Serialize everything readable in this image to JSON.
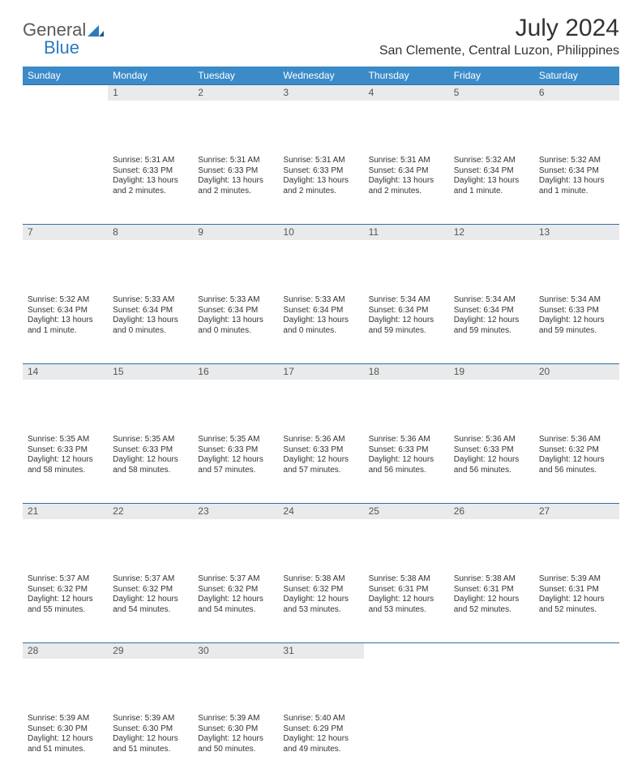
{
  "brand": {
    "part1": "General",
    "part2": "Blue"
  },
  "title": "July 2024",
  "location": "San Clemente, Central Luzon, Philippines",
  "colors": {
    "header_bg": "#3b8bc9",
    "header_text": "#ffffff",
    "daynum_bg": "#e9eaeb",
    "daynum_border": "#2f6fa6",
    "body_text": "#333333",
    "brand_gray": "#5a5a5a",
    "brand_blue": "#2b7bbf",
    "page_bg": "#ffffff"
  },
  "typography": {
    "title_fontsize": 30,
    "location_fontsize": 16,
    "dayheader_fontsize": 12,
    "daynum_fontsize": 12,
    "cell_fontsize": 10
  },
  "day_headers": [
    "Sunday",
    "Monday",
    "Tuesday",
    "Wednesday",
    "Thursday",
    "Friday",
    "Saturday"
  ],
  "weeks": [
    [
      {
        "num": "",
        "sunrise": "",
        "sunset": "",
        "daylight": ""
      },
      {
        "num": "1",
        "sunrise": "Sunrise: 5:31 AM",
        "sunset": "Sunset: 6:33 PM",
        "daylight": "Daylight: 13 hours and 2 minutes."
      },
      {
        "num": "2",
        "sunrise": "Sunrise: 5:31 AM",
        "sunset": "Sunset: 6:33 PM",
        "daylight": "Daylight: 13 hours and 2 minutes."
      },
      {
        "num": "3",
        "sunrise": "Sunrise: 5:31 AM",
        "sunset": "Sunset: 6:33 PM",
        "daylight": "Daylight: 13 hours and 2 minutes."
      },
      {
        "num": "4",
        "sunrise": "Sunrise: 5:31 AM",
        "sunset": "Sunset: 6:34 PM",
        "daylight": "Daylight: 13 hours and 2 minutes."
      },
      {
        "num": "5",
        "sunrise": "Sunrise: 5:32 AM",
        "sunset": "Sunset: 6:34 PM",
        "daylight": "Daylight: 13 hours and 1 minute."
      },
      {
        "num": "6",
        "sunrise": "Sunrise: 5:32 AM",
        "sunset": "Sunset: 6:34 PM",
        "daylight": "Daylight: 13 hours and 1 minute."
      }
    ],
    [
      {
        "num": "7",
        "sunrise": "Sunrise: 5:32 AM",
        "sunset": "Sunset: 6:34 PM",
        "daylight": "Daylight: 13 hours and 1 minute."
      },
      {
        "num": "8",
        "sunrise": "Sunrise: 5:33 AM",
        "sunset": "Sunset: 6:34 PM",
        "daylight": "Daylight: 13 hours and 0 minutes."
      },
      {
        "num": "9",
        "sunrise": "Sunrise: 5:33 AM",
        "sunset": "Sunset: 6:34 PM",
        "daylight": "Daylight: 13 hours and 0 minutes."
      },
      {
        "num": "10",
        "sunrise": "Sunrise: 5:33 AM",
        "sunset": "Sunset: 6:34 PM",
        "daylight": "Daylight: 13 hours and 0 minutes."
      },
      {
        "num": "11",
        "sunrise": "Sunrise: 5:34 AM",
        "sunset": "Sunset: 6:34 PM",
        "daylight": "Daylight: 12 hours and 59 minutes."
      },
      {
        "num": "12",
        "sunrise": "Sunrise: 5:34 AM",
        "sunset": "Sunset: 6:34 PM",
        "daylight": "Daylight: 12 hours and 59 minutes."
      },
      {
        "num": "13",
        "sunrise": "Sunrise: 5:34 AM",
        "sunset": "Sunset: 6:33 PM",
        "daylight": "Daylight: 12 hours and 59 minutes."
      }
    ],
    [
      {
        "num": "14",
        "sunrise": "Sunrise: 5:35 AM",
        "sunset": "Sunset: 6:33 PM",
        "daylight": "Daylight: 12 hours and 58 minutes."
      },
      {
        "num": "15",
        "sunrise": "Sunrise: 5:35 AM",
        "sunset": "Sunset: 6:33 PM",
        "daylight": "Daylight: 12 hours and 58 minutes."
      },
      {
        "num": "16",
        "sunrise": "Sunrise: 5:35 AM",
        "sunset": "Sunset: 6:33 PM",
        "daylight": "Daylight: 12 hours and 57 minutes."
      },
      {
        "num": "17",
        "sunrise": "Sunrise: 5:36 AM",
        "sunset": "Sunset: 6:33 PM",
        "daylight": "Daylight: 12 hours and 57 minutes."
      },
      {
        "num": "18",
        "sunrise": "Sunrise: 5:36 AM",
        "sunset": "Sunset: 6:33 PM",
        "daylight": "Daylight: 12 hours and 56 minutes."
      },
      {
        "num": "19",
        "sunrise": "Sunrise: 5:36 AM",
        "sunset": "Sunset: 6:33 PM",
        "daylight": "Daylight: 12 hours and 56 minutes."
      },
      {
        "num": "20",
        "sunrise": "Sunrise: 5:36 AM",
        "sunset": "Sunset: 6:32 PM",
        "daylight": "Daylight: 12 hours and 56 minutes."
      }
    ],
    [
      {
        "num": "21",
        "sunrise": "Sunrise: 5:37 AM",
        "sunset": "Sunset: 6:32 PM",
        "daylight": "Daylight: 12 hours and 55 minutes."
      },
      {
        "num": "22",
        "sunrise": "Sunrise: 5:37 AM",
        "sunset": "Sunset: 6:32 PM",
        "daylight": "Daylight: 12 hours and 54 minutes."
      },
      {
        "num": "23",
        "sunrise": "Sunrise: 5:37 AM",
        "sunset": "Sunset: 6:32 PM",
        "daylight": "Daylight: 12 hours and 54 minutes."
      },
      {
        "num": "24",
        "sunrise": "Sunrise: 5:38 AM",
        "sunset": "Sunset: 6:32 PM",
        "daylight": "Daylight: 12 hours and 53 minutes."
      },
      {
        "num": "25",
        "sunrise": "Sunrise: 5:38 AM",
        "sunset": "Sunset: 6:31 PM",
        "daylight": "Daylight: 12 hours and 53 minutes."
      },
      {
        "num": "26",
        "sunrise": "Sunrise: 5:38 AM",
        "sunset": "Sunset: 6:31 PM",
        "daylight": "Daylight: 12 hours and 52 minutes."
      },
      {
        "num": "27",
        "sunrise": "Sunrise: 5:39 AM",
        "sunset": "Sunset: 6:31 PM",
        "daylight": "Daylight: 12 hours and 52 minutes."
      }
    ],
    [
      {
        "num": "28",
        "sunrise": "Sunrise: 5:39 AM",
        "sunset": "Sunset: 6:30 PM",
        "daylight": "Daylight: 12 hours and 51 minutes."
      },
      {
        "num": "29",
        "sunrise": "Sunrise: 5:39 AM",
        "sunset": "Sunset: 6:30 PM",
        "daylight": "Daylight: 12 hours and 51 minutes."
      },
      {
        "num": "30",
        "sunrise": "Sunrise: 5:39 AM",
        "sunset": "Sunset: 6:30 PM",
        "daylight": "Daylight: 12 hours and 50 minutes."
      },
      {
        "num": "31",
        "sunrise": "Sunrise: 5:40 AM",
        "sunset": "Sunset: 6:29 PM",
        "daylight": "Daylight: 12 hours and 49 minutes."
      },
      {
        "num": "",
        "sunrise": "",
        "sunset": "",
        "daylight": ""
      },
      {
        "num": "",
        "sunrise": "",
        "sunset": "",
        "daylight": ""
      },
      {
        "num": "",
        "sunrise": "",
        "sunset": "",
        "daylight": ""
      }
    ]
  ]
}
